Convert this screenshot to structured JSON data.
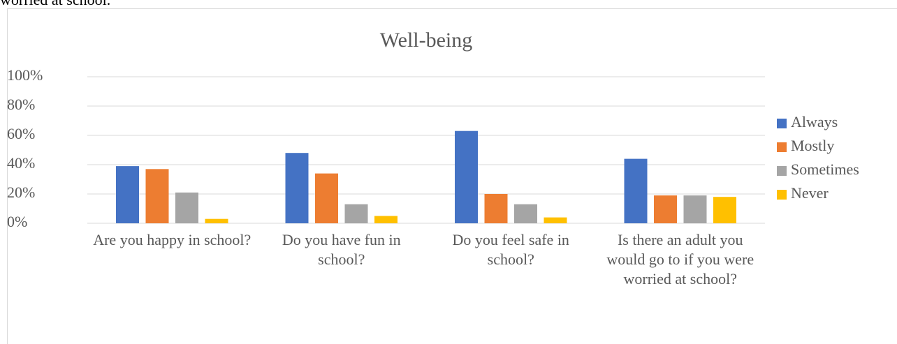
{
  "header_text": "worried at school.",
  "chart_data": {
    "type": "bar",
    "title": "Well-being",
    "categories": [
      "Are you happy in school?",
      "Do you have fun in school?",
      "Do you feel safe in school?",
      "Is there an adult you would go to if you were worried at school?"
    ],
    "series": [
      {
        "name": "Always",
        "color": "#4472c4",
        "values": [
          39,
          48,
          63,
          44
        ]
      },
      {
        "name": "Mostly",
        "color": "#ed7d31",
        "values": [
          37,
          34,
          20,
          19
        ]
      },
      {
        "name": "Sometimes",
        "color": "#a5a5a5",
        "values": [
          21,
          13,
          13,
          19
        ]
      },
      {
        "name": "Never",
        "color": "#ffc000",
        "values": [
          3,
          5,
          4,
          18
        ]
      }
    ],
    "ylim": [
      0,
      100
    ],
    "yticks": [
      {
        "value": 0,
        "label": "0%"
      },
      {
        "value": 20,
        "label": "20%"
      },
      {
        "value": 40,
        "label": "40%"
      },
      {
        "value": 60,
        "label": "60%"
      },
      {
        "value": 80,
        "label": "80%"
      },
      {
        "value": 100,
        "label": "100%"
      }
    ],
    "grid": true,
    "legend": "right"
  }
}
